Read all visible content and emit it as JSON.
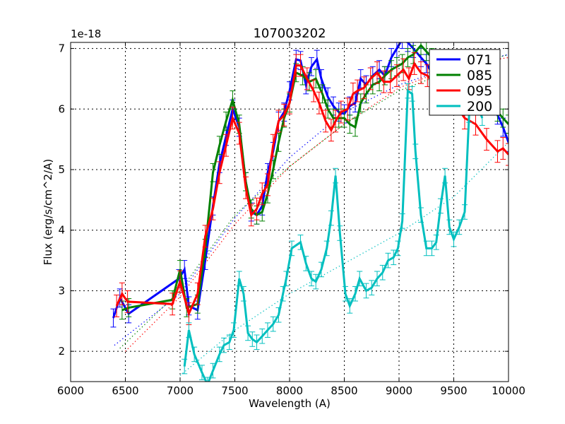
{
  "chart_data": {
    "type": "line",
    "title": "107003202",
    "xlabel": "Wavelength (A)",
    "ylabel": "Flux (erg/s/cm^2/A)",
    "y_offset_label": "1e-18",
    "xlim": [
      6000,
      10000
    ],
    "ylim": [
      1.5,
      7.1
    ],
    "grid": true,
    "legend_position": "upper right",
    "x_ticks": [
      6000,
      6500,
      7000,
      7500,
      8000,
      8500,
      9000,
      9500,
      10000
    ],
    "x_tick_labels": [
      "6000",
      "6500",
      "7000",
      "7500",
      "8000",
      "8500",
      "9000",
      "9500",
      "10000"
    ],
    "y_ticks": [
      2,
      3,
      4,
      5,
      6,
      7
    ],
    "y_tick_labels": [
      "2",
      "3",
      "4",
      "5",
      "6",
      "7"
    ],
    "series": [
      {
        "name": "071",
        "color": "#0000ff",
        "x": [
          6390,
          6450,
          6530,
          6990,
          7040,
          7080,
          7160,
          7230,
          7300,
          7360,
          7420,
          7480,
          7540,
          7600,
          7650,
          7700,
          7750,
          7800,
          7850,
          7900,
          7950,
          8000,
          8060,
          8100,
          8150,
          8200,
          8250,
          8290,
          8350,
          8400,
          8450,
          8500,
          8550,
          8600,
          8650,
          8700,
          8760,
          8820,
          8870,
          8930,
          8980,
          9030,
          9080,
          9130,
          9200,
          9250,
          9300,
          9400,
          9500,
          9600,
          9700,
          9800,
          9900,
          9950,
          10000
        ],
        "values": [
          2.55,
          2.88,
          2.62,
          3.2,
          3.35,
          2.75,
          2.68,
          3.5,
          4.4,
          5.1,
          5.55,
          6.0,
          5.7,
          4.8,
          4.3,
          4.25,
          4.4,
          4.95,
          5.3,
          5.8,
          5.95,
          6.3,
          6.82,
          6.8,
          6.4,
          6.7,
          6.82,
          6.5,
          6.2,
          6.05,
          5.95,
          5.92,
          6.05,
          6.1,
          6.5,
          6.4,
          6.55,
          6.65,
          6.55,
          6.85,
          7.0,
          7.15,
          7.1,
          7.0,
          6.85,
          6.75,
          6.6,
          6.5,
          6.35,
          6.25,
          6.15,
          6.05,
          5.9,
          5.7,
          5.45
        ],
        "error": 0.15,
        "fit": {
          "x": [
            6400,
            7000,
            7500,
            8000,
            8500,
            9000,
            9500,
            10000
          ],
          "values": [
            2.1,
            2.95,
            4.2,
            5.2,
            5.95,
            6.4,
            6.7,
            6.9
          ]
        }
      },
      {
        "name": "085",
        "color": "#008000",
        "x": [
          6470,
          6530,
          6930,
          7000,
          7060,
          7160,
          7230,
          7300,
          7360,
          7420,
          7480,
          7540,
          7600,
          7650,
          7700,
          7750,
          7800,
          7850,
          7900,
          7950,
          8000,
          8060,
          8120,
          8180,
          8240,
          8300,
          8350,
          8400,
          8450,
          8500,
          8550,
          8600,
          8650,
          8700,
          8760,
          8820,
          8870,
          8930,
          8980,
          9030,
          9080,
          9130,
          9200,
          9250,
          9300,
          9400,
          9500,
          9600,
          9700,
          9800,
          9900,
          9950,
          10000
        ],
        "values": [
          2.68,
          2.72,
          2.85,
          3.35,
          2.72,
          2.78,
          3.7,
          4.95,
          5.4,
          5.8,
          6.15,
          5.75,
          4.8,
          4.35,
          4.25,
          4.3,
          4.6,
          5.0,
          5.45,
          5.85,
          6.1,
          6.6,
          6.55,
          6.45,
          6.5,
          6.25,
          6.0,
          5.85,
          5.85,
          5.85,
          5.75,
          5.7,
          6.1,
          6.25,
          6.4,
          6.45,
          6.55,
          6.65,
          6.7,
          6.75,
          6.85,
          6.9,
          7.05,
          6.95,
          6.85,
          6.7,
          6.5,
          6.35,
          6.2,
          6.05,
          5.95,
          5.85,
          5.75
        ],
        "error": 0.15,
        "fit": {
          "x": [
            6450,
            7000,
            7500,
            8000,
            8500,
            9000,
            9500,
            10000
          ],
          "values": [
            2.05,
            3.0,
            4.25,
            5.05,
            5.75,
            6.3,
            6.65,
            6.9
          ]
        }
      },
      {
        "name": "095",
        "color": "#ff0000",
        "x": [
          6420,
          6470,
          6520,
          6930,
          7000,
          7080,
          7160,
          7230,
          7300,
          7360,
          7420,
          7480,
          7540,
          7600,
          7650,
          7700,
          7750,
          7800,
          7850,
          7900,
          7950,
          8000,
          8060,
          8100,
          8160,
          8220,
          8270,
          8330,
          8380,
          8420,
          8470,
          8530,
          8580,
          8620,
          8680,
          8740,
          8800,
          8860,
          8920,
          8980,
          9040,
          9090,
          9140,
          9200,
          9260,
          9320,
          9400,
          9500,
          9600,
          9700,
          9800,
          9900,
          9950,
          10000
        ],
        "values": [
          2.75,
          2.95,
          2.82,
          2.78,
          3.15,
          2.62,
          2.95,
          3.9,
          4.35,
          4.95,
          5.4,
          5.85,
          5.6,
          4.7,
          4.25,
          4.35,
          4.6,
          4.75,
          5.4,
          5.8,
          5.9,
          6.1,
          6.72,
          6.72,
          6.5,
          6.3,
          6.1,
          5.8,
          5.65,
          5.8,
          5.95,
          6.0,
          6.25,
          6.3,
          6.35,
          6.5,
          6.6,
          6.45,
          6.45,
          6.55,
          6.65,
          6.5,
          6.75,
          6.6,
          6.55,
          6.4,
          6.25,
          6.1,
          5.85,
          5.75,
          5.5,
          5.3,
          5.35,
          5.25
        ],
        "error": 0.18,
        "fit": {
          "x": [
            6500,
            7000,
            7500,
            8000,
            8500,
            9000,
            9500,
            10000
          ],
          "values": [
            2.0,
            2.9,
            4.1,
            5.05,
            5.75,
            6.35,
            6.7,
            6.85
          ]
        }
      },
      {
        "name": "200",
        "color": "#00bfbf",
        "x": [
          7040,
          7080,
          7130,
          7200,
          7250,
          7300,
          7360,
          7400,
          7450,
          7490,
          7540,
          7580,
          7620,
          7660,
          7700,
          7750,
          7800,
          7850,
          7900,
          7940,
          7970,
          8020,
          8100,
          8150,
          8200,
          8240,
          8290,
          8340,
          8380,
          8420,
          8460,
          8510,
          8550,
          8600,
          8640,
          8700,
          8750,
          8800,
          8850,
          8900,
          8950,
          8990,
          9030,
          9080,
          9120,
          9150,
          9200,
          9250,
          9300,
          9340,
          9380,
          9420,
          9460,
          9500,
          9550,
          9600,
          9640,
          9680,
          9720,
          9760
        ],
        "values": [
          1.75,
          2.35,
          1.95,
          1.65,
          1.45,
          1.68,
          1.95,
          2.1,
          2.15,
          2.35,
          3.2,
          2.95,
          2.3,
          2.2,
          2.15,
          2.25,
          2.35,
          2.45,
          2.6,
          2.95,
          3.2,
          3.7,
          3.8,
          3.45,
          3.2,
          3.15,
          3.35,
          3.7,
          4.2,
          4.9,
          3.95,
          2.95,
          2.75,
          2.95,
          3.2,
          3.0,
          3.05,
          3.2,
          3.3,
          3.5,
          3.55,
          3.7,
          4.15,
          6.3,
          6.25,
          5.3,
          4.25,
          3.7,
          3.7,
          3.8,
          4.4,
          4.9,
          4.05,
          3.85,
          4.05,
          4.3,
          5.9,
          6.35,
          6.05,
          5.85
        ],
        "error": 0.12,
        "fit": {
          "x": [
            7000,
            7500,
            8000,
            8500,
            9000,
            9500,
            10000
          ],
          "values": [
            1.6,
            2.35,
            2.95,
            3.45,
            3.95,
            4.55,
            5.45
          ]
        }
      }
    ]
  }
}
